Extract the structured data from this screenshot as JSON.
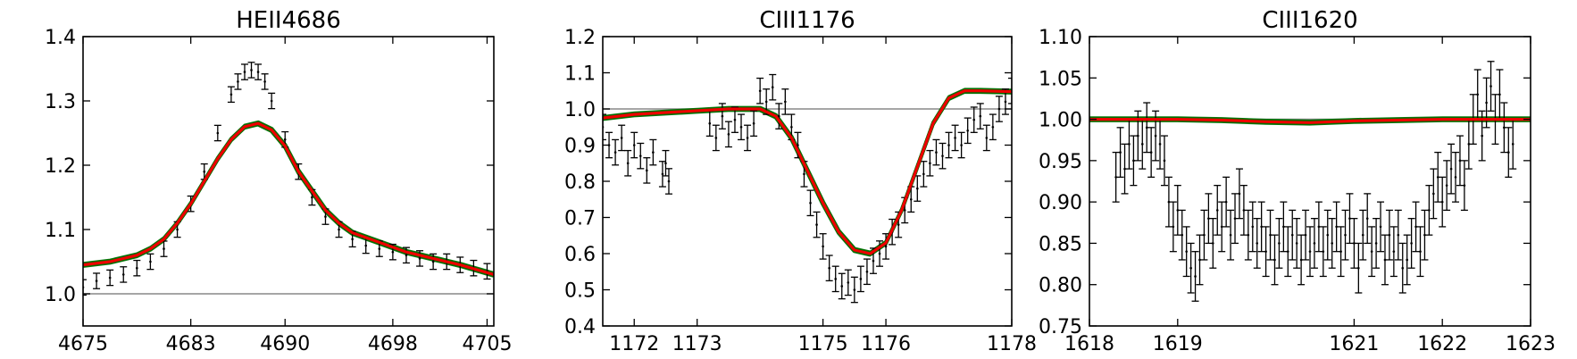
{
  "chart_data": [
    {
      "type": "line",
      "title": "HEII4686",
      "xlabel": "",
      "ylabel": "",
      "xlim": [
        4675,
        4705.5
      ],
      "ylim": [
        0.95,
        1.4
      ],
      "xticks": [
        4675,
        4683,
        4690,
        4698,
        4705
      ],
      "yticks": [
        1.0,
        1.1,
        1.2,
        1.3,
        1.4
      ],
      "ytick_labels": [
        "1.0",
        "1.1",
        "1.2",
        "1.3",
        "1.4"
      ],
      "reference_level": 1.0,
      "grid": false,
      "line_colors": {
        "data": "#000000",
        "models": "#007000",
        "best_fit": "#ee0000",
        "reference": "#888888"
      },
      "series": [
        {
          "role": "observed data with error bars",
          "x": [
            4675,
            4676,
            4677,
            4678,
            4679,
            4680,
            4681,
            4682,
            4683,
            4684,
            4685,
            4686,
            4686.5,
            4687,
            4687.5,
            4688,
            4688.5,
            4689,
            4690,
            4691,
            4692,
            4693,
            4694,
            4695,
            4696,
            4697,
            4698,
            4699,
            4700,
            4701,
            4702,
            4703,
            4704,
            4705
          ],
          "y": [
            1.01,
            1.02,
            1.025,
            1.03,
            1.04,
            1.05,
            1.07,
            1.1,
            1.14,
            1.19,
            1.25,
            1.31,
            1.33,
            1.345,
            1.348,
            1.345,
            1.33,
            1.3,
            1.24,
            1.19,
            1.15,
            1.12,
            1.1,
            1.085,
            1.075,
            1.07,
            1.065,
            1.06,
            1.055,
            1.05,
            1.05,
            1.045,
            1.04,
            1.035
          ],
          "yerr": 0.012
        },
        {
          "role": "best-fit model",
          "x": [
            4675,
            4677,
            4679,
            4680,
            4681,
            4682,
            4683,
            4684,
            4685,
            4686,
            4687,
            4688,
            4689,
            4690,
            4691,
            4692,
            4693,
            4694,
            4695,
            4697,
            4699,
            4701,
            4703,
            4705.5
          ],
          "y": [
            1.045,
            1.05,
            1.06,
            1.07,
            1.085,
            1.11,
            1.14,
            1.175,
            1.21,
            1.24,
            1.26,
            1.265,
            1.255,
            1.23,
            1.19,
            1.16,
            1.13,
            1.11,
            1.095,
            1.08,
            1.065,
            1.055,
            1.045,
            1.03
          ]
        }
      ]
    },
    {
      "type": "line",
      "title": "CIII1176",
      "xlabel": "",
      "ylabel": "",
      "xlim": [
        1171.5,
        1178
      ],
      "ylim": [
        0.4,
        1.2
      ],
      "xticks": [
        1172,
        1173,
        1175,
        1176,
        1178
      ],
      "yticks": [
        0.4,
        0.5,
        0.6,
        0.7,
        0.8,
        0.9,
        1.0,
        1.1,
        1.2
      ],
      "ytick_labels": [
        "0.4",
        "0.5",
        "0.6",
        "0.7",
        "0.8",
        "0.9",
        "1.0",
        "1.1",
        "1.2"
      ],
      "reference_level": 1.0,
      "grid": false,
      "line_colors": {
        "data": "#000000",
        "models": "#007000",
        "best_fit": "#ee0000",
        "reference": "#888888"
      },
      "series": [
        {
          "role": "observed data with error bars",
          "x": [
            1171.5,
            1171.6,
            1171.7,
            1171.8,
            1171.9,
            1172.0,
            1172.1,
            1172.2,
            1172.3,
            1172.45,
            1172.5,
            1172.55,
            1173.2,
            1173.3,
            1173.4,
            1173.5,
            1173.6,
            1173.7,
            1173.8,
            1173.9,
            1174.0,
            1174.1,
            1174.2,
            1174.3,
            1174.4,
            1174.5,
            1174.6,
            1174.7,
            1174.8,
            1174.9,
            1175.0,
            1175.1,
            1175.2,
            1175.3,
            1175.4,
            1175.5,
            1175.6,
            1175.7,
            1175.8,
            1175.9,
            1176.0,
            1176.1,
            1176.2,
            1176.3,
            1176.4,
            1176.5,
            1176.6,
            1176.7,
            1176.8,
            1176.9,
            1177.0,
            1177.1,
            1177.2,
            1177.3,
            1177.4,
            1177.5,
            1177.6,
            1177.7,
            1177.8,
            1177.9,
            1178.0
          ],
          "y": [
            0.95,
            0.9,
            0.88,
            0.92,
            0.85,
            0.9,
            0.87,
            0.83,
            0.88,
            0.82,
            0.85,
            0.8,
            0.96,
            0.92,
            0.98,
            0.93,
            0.97,
            0.95,
            0.92,
            0.96,
            1.05,
            1.02,
            1.06,
            0.98,
            1.02,
            0.95,
            0.9,
            0.82,
            0.74,
            0.68,
            0.62,
            0.56,
            0.53,
            0.51,
            0.52,
            0.5,
            0.53,
            0.55,
            0.58,
            0.6,
            0.62,
            0.66,
            0.68,
            0.72,
            0.75,
            0.78,
            0.82,
            0.85,
            0.88,
            0.87,
            0.9,
            0.92,
            0.9,
            0.94,
            0.97,
            0.98,
            0.92,
            0.95,
            1.0,
            1.02,
            1.05
          ],
          "yerr": 0.035
        },
        {
          "role": "best-fit model",
          "x": [
            1171.5,
            1172,
            1172.5,
            1173,
            1173.5,
            1174,
            1174.25,
            1174.5,
            1174.75,
            1175,
            1175.25,
            1175.5,
            1175.75,
            1176,
            1176.25,
            1176.5,
            1176.75,
            1177,
            1177.25,
            1177.5,
            1178
          ],
          "y": [
            0.975,
            0.985,
            0.99,
            0.995,
            1.0,
            1.0,
            0.98,
            0.92,
            0.83,
            0.74,
            0.66,
            0.61,
            0.6,
            0.63,
            0.72,
            0.84,
            0.96,
            1.03,
            1.05,
            1.05,
            1.048
          ]
        }
      ]
    },
    {
      "type": "line",
      "title": "CIII1620",
      "xlabel": "",
      "ylabel": "",
      "xlim": [
        1618,
        1623
      ],
      "ylim": [
        0.75,
        1.1
      ],
      "xticks": [
        1618,
        1619,
        1621,
        1622,
        1623
      ],
      "yticks": [
        0.75,
        0.8,
        0.85,
        0.9,
        0.95,
        1.0,
        1.05,
        1.1
      ],
      "ytick_labels": [
        "0.75",
        "0.80",
        "0.85",
        "0.90",
        "0.95",
        "1.00",
        "1.05",
        "1.10"
      ],
      "reference_level": 1.0,
      "grid": false,
      "line_colors": {
        "data": "#000000",
        "models": "#007000",
        "best_fit": "#ee0000",
        "reference": "#888888"
      },
      "series": [
        {
          "role": "observed data with error bars",
          "x": [
            1618.3,
            1618.35,
            1618.4,
            1618.45,
            1618.5,
            1618.55,
            1618.6,
            1618.65,
            1618.7,
            1618.75,
            1618.8,
            1618.85,
            1618.9,
            1618.95,
            1619.0,
            1619.05,
            1619.1,
            1619.15,
            1619.2,
            1619.25,
            1619.3,
            1619.35,
            1619.4,
            1619.45,
            1619.5,
            1619.55,
            1619.6,
            1619.65,
            1619.7,
            1619.75,
            1619.8,
            1619.85,
            1619.9,
            1619.95,
            1620.0,
            1620.05,
            1620.1,
            1620.15,
            1620.2,
            1620.25,
            1620.3,
            1620.35,
            1620.4,
            1620.45,
            1620.5,
            1620.55,
            1620.6,
            1620.65,
            1620.7,
            1620.75,
            1620.8,
            1620.85,
            1620.9,
            1620.95,
            1621.0,
            1621.05,
            1621.1,
            1621.15,
            1621.2,
            1621.25,
            1621.3,
            1621.35,
            1621.4,
            1621.45,
            1621.5,
            1621.55,
            1621.6,
            1621.65,
            1621.7,
            1621.75,
            1621.8,
            1621.85,
            1621.9,
            1621.95,
            1622.0,
            1622.05,
            1622.1,
            1622.15,
            1622.2,
            1622.25,
            1622.3,
            1622.35,
            1622.4,
            1622.45,
            1622.5,
            1622.55,
            1622.6,
            1622.65,
            1622.7,
            1622.75,
            1622.8
          ],
          "y": [
            0.93,
            0.96,
            0.94,
            0.97,
            0.95,
            0.98,
            0.97,
            0.99,
            0.96,
            0.98,
            0.97,
            0.95,
            0.9,
            0.87,
            0.89,
            0.86,
            0.84,
            0.82,
            0.81,
            0.83,
            0.86,
            0.88,
            0.85,
            0.89,
            0.87,
            0.9,
            0.86,
            0.88,
            0.91,
            0.89,
            0.86,
            0.87,
            0.85,
            0.87,
            0.84,
            0.86,
            0.83,
            0.85,
            0.87,
            0.84,
            0.86,
            0.85,
            0.83,
            0.86,
            0.84,
            0.85,
            0.87,
            0.84,
            0.86,
            0.85,
            0.87,
            0.84,
            0.86,
            0.88,
            0.85,
            0.82,
            0.86,
            0.88,
            0.84,
            0.85,
            0.87,
            0.83,
            0.86,
            0.84,
            0.86,
            0.82,
            0.83,
            0.85,
            0.87,
            0.84,
            0.86,
            0.89,
            0.91,
            0.93,
            0.9,
            0.92,
            0.94,
            0.93,
            0.95,
            0.92,
            0.97,
            1.0,
            1.03,
            0.98,
            1.02,
            1.04,
            1.0,
            1.03,
            0.99,
            0.96,
            0.97
          ],
          "yerr": 0.03
        },
        {
          "role": "best-fit model",
          "x": [
            1618,
            1619,
            1619.5,
            1620,
            1620.5,
            1621,
            1621.5,
            1622,
            1622.5,
            1623
          ],
          "y": [
            1.0,
            1.0,
            0.999,
            0.997,
            0.996,
            0.998,
            0.999,
            1.0,
            1.0,
            1.0
          ]
        }
      ]
    }
  ]
}
